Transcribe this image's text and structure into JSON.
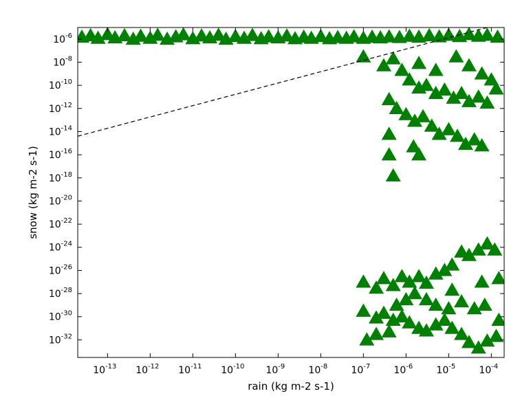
{
  "chart_data": {
    "type": "scatter",
    "xlabel": "rain (kg m-2 s-1)",
    "ylabel": "snow (kg m-2 s-1)",
    "xscale": "log",
    "yscale": "log",
    "xlim": [
      2e-14,
      0.0002
    ],
    "ylim": [
      3e-34,
      1e-05
    ],
    "x_ticks": [
      {
        "value": 1e-13,
        "base": "10",
        "exp": "-13"
      },
      {
        "value": 1e-12,
        "base": "10",
        "exp": "-12"
      },
      {
        "value": 1e-11,
        "base": "10",
        "exp": "-11"
      },
      {
        "value": 1e-10,
        "base": "10",
        "exp": "-10"
      },
      {
        "value": 1e-09,
        "base": "10",
        "exp": "-9"
      },
      {
        "value": 1e-08,
        "base": "10",
        "exp": "-8"
      },
      {
        "value": 1e-07,
        "base": "10",
        "exp": "-7"
      },
      {
        "value": 1e-06,
        "base": "10",
        "exp": "-6"
      },
      {
        "value": 1e-05,
        "base": "10",
        "exp": "-5"
      },
      {
        "value": 0.0001,
        "base": "10",
        "exp": "-4"
      }
    ],
    "y_ticks": [
      {
        "value": 1e-06,
        "base": "10",
        "exp": "-6"
      },
      {
        "value": 1e-08,
        "base": "10",
        "exp": "-8"
      },
      {
        "value": 1e-10,
        "base": "10",
        "exp": "-10"
      },
      {
        "value": 1e-12,
        "base": "10",
        "exp": "-12"
      },
      {
        "value": 1e-14,
        "base": "10",
        "exp": "-14"
      },
      {
        "value": 1e-16,
        "base": "10",
        "exp": "-16"
      },
      {
        "value": 1e-18,
        "base": "10",
        "exp": "-18"
      },
      {
        "value": 1e-20,
        "base": "10",
        "exp": "-20"
      },
      {
        "value": 1e-22,
        "base": "10",
        "exp": "-22"
      },
      {
        "value": 1e-24,
        "base": "10",
        "exp": "-24"
      },
      {
        "value": 1e-26,
        "base": "10",
        "exp": "-26"
      },
      {
        "value": 1e-28,
        "base": "10",
        "exp": "-28"
      },
      {
        "value": 1e-30,
        "base": "10",
        "exp": "-30"
      },
      {
        "value": 1e-32,
        "base": "10",
        "exp": "-32"
      }
    ],
    "grid": false,
    "marker": "triangle-up",
    "marker_color": "#008000",
    "reference_line": {
      "style": "dashed",
      "color": "#000000",
      "x": [
        2e-14,
        8e-05
      ],
      "y": [
        4e-15,
        1e-05
      ]
    },
    "series": [
      {
        "points": [
          [
            2.5e-14,
            1.5e-06
          ],
          [
            4e-14,
            2e-06
          ],
          [
            6e-14,
            1.2e-06
          ],
          [
            1e-13,
            2.5e-06
          ],
          [
            1.5e-13,
            1.3e-06
          ],
          [
            2.5e-13,
            2e-06
          ],
          [
            4e-13,
            1e-06
          ],
          [
            6e-13,
            1.8e-06
          ],
          [
            1e-12,
            1.2e-06
          ],
          [
            1.5e-12,
            2.2e-06
          ],
          [
            2.5e-12,
            1e-06
          ],
          [
            4e-12,
            1.6e-06
          ],
          [
            6e-12,
            2.4e-06
          ],
          [
            1e-11,
            1.1e-06
          ],
          [
            1.6e-11,
            1.9e-06
          ],
          [
            2.5e-11,
            1.3e-06
          ],
          [
            4e-11,
            2.2e-06
          ],
          [
            6e-11,
            1e-06
          ],
          [
            1e-10,
            1.7e-06
          ],
          [
            1.6e-10,
            1.2e-06
          ],
          [
            2.5e-10,
            2.1e-06
          ],
          [
            4e-10,
            1.1e-06
          ],
          [
            6e-10,
            1.6e-06
          ],
          [
            1e-09,
            1.3e-06
          ],
          [
            1.6e-09,
            1.9e-06
          ],
          [
            2.5e-09,
            1.1e-06
          ],
          [
            4e-09,
            1.5e-06
          ],
          [
            6e-09,
            1.2e-06
          ],
          [
            1e-08,
            1.7e-06
          ],
          [
            1.6e-08,
            1.1e-06
          ],
          [
            2.5e-08,
            1.4e-06
          ],
          [
            4e-08,
            1.2e-06
          ],
          [
            6e-08,
            1.6e-06
          ],
          [
            1e-07,
            1.2e-06
          ],
          [
            1.6e-07,
            1.5e-06
          ],
          [
            2.5e-07,
            1.3e-06
          ],
          [
            4e-07,
            1.6e-06
          ],
          [
            7e-07,
            1.4e-06
          ],
          [
            1.2e-06,
            1.8e-06
          ],
          [
            2e-06,
            1.5e-06
          ],
          [
            3.5e-06,
            2e-06
          ],
          [
            6e-06,
            1.6e-06
          ],
          [
            1e-05,
            2.2e-06
          ],
          [
            1.8e-05,
            1.7e-06
          ],
          [
            3e-05,
            2.5e-06
          ],
          [
            5e-05,
            1.8e-06
          ],
          [
            8e-05,
            2.2e-06
          ],
          [
            0.00014,
            1.5e-06
          ],
          [
            1e-07,
            3e-08
          ],
          [
            3e-07,
            5e-09
          ],
          [
            5e-07,
            2e-08
          ],
          [
            8e-07,
            2e-09
          ],
          [
            1.2e-06,
            3e-10
          ],
          [
            2e-06,
            6e-11
          ],
          [
            3e-06,
            1e-10
          ],
          [
            5e-06,
            2e-11
          ],
          [
            8e-06,
            4e-11
          ],
          [
            1.3e-05,
            8e-12
          ],
          [
            2e-05,
            2e-11
          ],
          [
            3e-05,
            4e-12
          ],
          [
            5e-05,
            1e-11
          ],
          [
            8e-05,
            3e-12
          ],
          [
            0.00013,
            5e-11
          ],
          [
            4e-07,
            6e-12
          ],
          [
            6e-07,
            1e-12
          ],
          [
            1e-06,
            3e-13
          ],
          [
            1.6e-06,
            8e-14
          ],
          [
            2.5e-06,
            2e-13
          ],
          [
            4e-06,
            3e-14
          ],
          [
            6e-06,
            6e-15
          ],
          [
            1e-05,
            1.5e-14
          ],
          [
            1.6e-05,
            4e-15
          ],
          [
            2.5e-05,
            8e-16
          ],
          [
            4e-05,
            2e-15
          ],
          [
            6e-05,
            6e-16
          ],
          [
            4e-07,
            6e-15
          ],
          [
            1.5e-06,
            5e-16
          ],
          [
            2e-06,
            1e-16
          ],
          [
            4e-07,
            1e-16
          ],
          [
            5e-07,
            1.5e-18
          ],
          [
            1.5e-05,
            3e-08
          ],
          [
            3e-05,
            5e-09
          ],
          [
            6e-05,
            1e-09
          ],
          [
            0.0001,
            3e-10
          ],
          [
            2e-06,
            8e-09
          ],
          [
            5e-06,
            2e-09
          ],
          [
            1e-07,
            1e-27
          ],
          [
            2e-07,
            3e-28
          ],
          [
            3e-07,
            2e-27
          ],
          [
            5e-07,
            5e-28
          ],
          [
            8e-07,
            3e-27
          ],
          [
            1.2e-06,
            1e-27
          ],
          [
            2e-06,
            3e-27
          ],
          [
            3e-06,
            8e-28
          ],
          [
            5e-06,
            5e-27
          ],
          [
            8e-06,
            1e-26
          ],
          [
            1.2e-05,
            3e-26
          ],
          [
            2e-05,
            4e-25
          ],
          [
            3e-05,
            2e-25
          ],
          [
            5e-05,
            6e-25
          ],
          [
            8e-05,
            2e-24
          ],
          [
            0.00012,
            6e-25
          ],
          [
            1e-07,
            3e-30
          ],
          [
            2e-07,
            8e-31
          ],
          [
            3e-07,
            2e-30
          ],
          [
            5e-07,
            5e-31
          ],
          [
            8e-07,
            1e-30
          ],
          [
            1.2e-06,
            3e-31
          ],
          [
            2e-06,
            1e-31
          ],
          [
            3e-06,
            6e-32
          ],
          [
            5e-06,
            2e-31
          ],
          [
            8e-06,
            5e-31
          ],
          [
            1.2e-05,
            1e-31
          ],
          [
            2e-05,
            3e-32
          ],
          [
            3e-05,
            6e-33
          ],
          [
            5e-05,
            2e-33
          ],
          [
            8e-05,
            8e-33
          ],
          [
            0.00013,
            2e-32
          ],
          [
            1.2e-07,
            1e-32
          ],
          [
            2e-07,
            3e-32
          ],
          [
            4e-07,
            5e-32
          ],
          [
            6e-07,
            1e-29
          ],
          [
            1e-06,
            3e-29
          ],
          [
            1.6e-06,
            1e-28
          ],
          [
            3e-06,
            3e-29
          ],
          [
            5e-06,
            1e-29
          ],
          [
            1e-05,
            5e-30
          ],
          [
            2e-05,
            2e-29
          ],
          [
            4e-05,
            5e-30
          ],
          [
            7e-05,
            1e-29
          ],
          [
            0.00015,
            5e-31
          ],
          [
            0.00015,
            2e-27
          ],
          [
            6e-05,
            1e-27
          ],
          [
            1.2e-05,
            2e-28
          ]
        ]
      }
    ]
  }
}
